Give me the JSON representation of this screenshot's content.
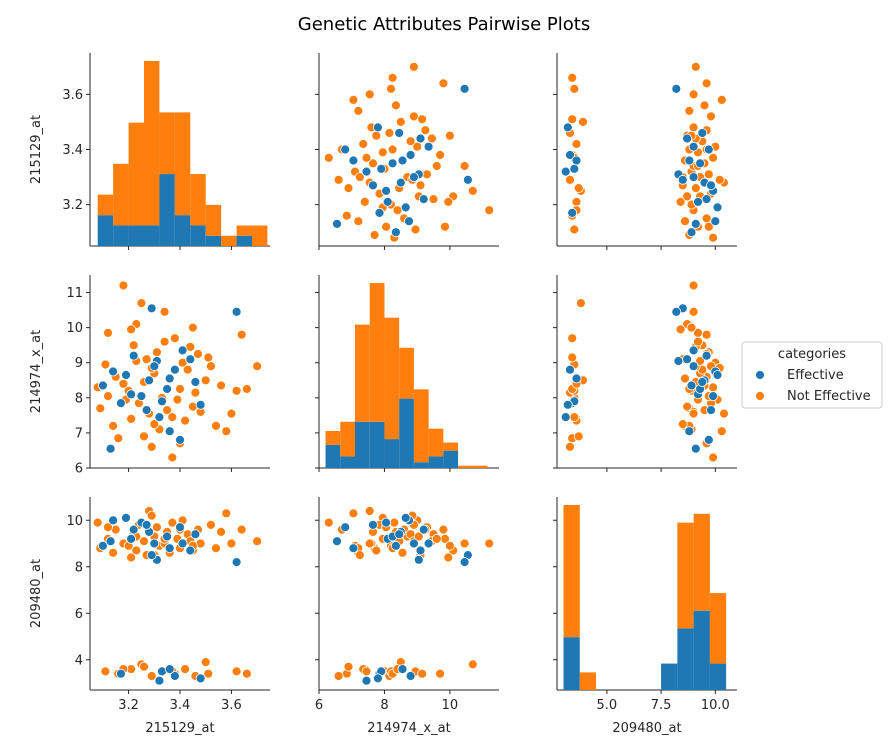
{
  "figure": {
    "title": "Genetic Attributes Pairwise Plots"
  },
  "colors": {
    "Effective": "#1f77b4",
    "Not Effective": "#ff7f0e"
  },
  "legend": {
    "title": "categories",
    "entries": [
      "Effective",
      "Not Effective"
    ],
    "placement": "right"
  },
  "chart_data": {
    "type": "scatter",
    "variables": [
      "215129_at",
      "214974_x_at",
      "209480_at"
    ],
    "axes": {
      "215129_at": {
        "range": [
          3.05,
          3.75
        ],
        "ticks": [
          3.2,
          3.4,
          3.6
        ],
        "tick_labels": [
          "3.2",
          "3.4",
          "3.6"
        ]
      },
      "214974_x_at": {
        "range": [
          6.0,
          11.5
        ],
        "ticks": [
          6,
          7,
          8,
          9,
          10,
          11
        ],
        "tick_labels": [
          "6",
          "7",
          "8",
          "9",
          "10",
          "11"
        ],
        "x_ticks": [
          6,
          8,
          10
        ],
        "x_tick_labels": [
          "6",
          "8",
          "10"
        ]
      },
      "209480_at": {
        "range": [
          2.7,
          11.0
        ],
        "ticks": [
          4,
          6,
          8,
          10
        ],
        "tick_labels": [
          "4",
          "6",
          "8",
          "10"
        ],
        "x_ticks": [
          5.0,
          7.5,
          10.0
        ],
        "x_tick_labels": [
          "5.0",
          "7.5",
          "10.0"
        ]
      }
    },
    "histograms": {
      "215129_at": {
        "bin_edges": [
          3.08,
          3.14,
          3.2,
          3.26,
          3.32,
          3.38,
          3.44,
          3.5,
          3.56,
          3.62,
          3.68,
          3.74
        ],
        "series": [
          {
            "name": "Effective",
            "counts": [
              3,
              2,
              2,
              2,
              7,
              3,
              2,
              1,
              0,
              1,
              0
            ]
          },
          {
            "name": "Not Effective",
            "counts": [
              2,
              6,
              10,
              16,
              6,
              10,
              5,
              3,
              1,
              1,
              2
            ]
          }
        ],
        "stacked": true
      },
      "214974_x_at": {
        "bin_edges": [
          6.2,
          6.65,
          7.1,
          7.55,
          8.0,
          8.45,
          8.9,
          9.35,
          9.8,
          10.25,
          10.7,
          11.15
        ],
        "series": [
          {
            "name": "Effective",
            "counts": [
              1,
              0.5,
              2,
              2,
              1.25,
              3,
              0.25,
              0.5,
              0.75,
              0,
              0
            ]
          },
          {
            "name": "Not Effective",
            "counts": [
              0.6,
              1.5,
              4.2,
              6,
              5.25,
              2.2,
              3.15,
              1.2,
              0.35,
              0.1,
              0.1
            ]
          }
        ],
        "stacked": true
      },
      "209480_at": {
        "bin_edges": [
          3.0,
          3.75,
          4.5,
          5.25,
          6.0,
          6.75,
          7.5,
          8.25,
          9.0,
          9.75,
          10.5
        ],
        "series": [
          {
            "name": "Effective",
            "counts": [
              6,
              0,
              0,
              0,
              0,
              0,
              3,
              7,
              9,
              3
            ]
          },
          {
            "name": "Not Effective",
            "counts": [
              15,
              2,
              0,
              0,
              0,
              0,
              0,
              12,
              11,
              8
            ]
          }
        ],
        "stacked": true
      }
    },
    "points": {
      "Effective": [
        [
          3.1,
          8.35,
          8.9
        ],
        [
          3.14,
          8.75,
          10.0
        ],
        [
          3.17,
          7.85,
          3.4
        ],
        [
          3.21,
          8.1,
          9.2
        ],
        [
          3.28,
          8.5,
          9.5
        ],
        [
          3.31,
          9.05,
          8.3
        ],
        [
          3.32,
          7.45,
          3.1
        ],
        [
          3.35,
          8.25,
          9.3
        ],
        [
          3.36,
          7.05,
          8.8
        ],
        [
          3.38,
          8.8,
          3.3
        ],
        [
          3.4,
          6.8,
          9.7
        ],
        [
          3.41,
          9.35,
          9.0
        ],
        [
          3.29,
          10.55,
          8.5
        ],
        [
          3.25,
          8.05,
          9.9
        ],
        [
          3.33,
          7.9,
          3.5
        ],
        [
          3.46,
          8.45,
          9.4
        ],
        [
          3.22,
          9.2,
          9.6
        ],
        [
          3.62,
          10.45,
          8.2
        ],
        [
          3.13,
          6.55,
          9.1
        ],
        [
          3.36,
          8.55,
          3.6
        ],
        [
          3.27,
          7.65,
          9.8
        ],
        [
          3.44,
          9.1,
          8.7
        ],
        [
          3.19,
          8.65,
          10.1
        ],
        [
          3.48,
          7.8,
          3.2
        ],
        [
          3.3,
          8.9,
          9.0
        ]
      ],
      "Not Effective": [
        [
          3.08,
          8.3,
          9.9
        ],
        [
          3.09,
          7.7,
          8.8
        ],
        [
          3.11,
          8.95,
          3.5
        ],
        [
          3.12,
          9.85,
          9.2
        ],
        [
          3.14,
          7.2,
          8.6
        ],
        [
          3.15,
          8.6,
          9.6
        ],
        [
          3.16,
          6.85,
          3.4
        ],
        [
          3.18,
          11.2,
          9.0
        ],
        [
          3.19,
          7.95,
          10.1
        ],
        [
          3.2,
          8.2,
          8.9
        ],
        [
          3.21,
          7.4,
          3.6
        ],
        [
          3.22,
          9.5,
          9.4
        ],
        [
          3.23,
          10.1,
          8.7
        ],
        [
          3.24,
          7.85,
          9.8
        ],
        [
          3.25,
          10.7,
          3.8
        ],
        [
          3.26,
          8.45,
          9.1
        ],
        [
          3.27,
          9.1,
          8.5
        ],
        [
          3.28,
          7.55,
          10.4
        ],
        [
          3.29,
          6.6,
          3.3
        ],
        [
          3.3,
          8.7,
          9.3
        ],
        [
          3.31,
          9.3,
          9.7
        ],
        [
          3.32,
          7.1,
          8.9
        ],
        [
          3.33,
          8.0,
          3.5
        ],
        [
          3.34,
          10.45,
          9.0
        ],
        [
          3.35,
          7.65,
          9.5
        ],
        [
          3.36,
          8.55,
          8.6
        ],
        [
          3.37,
          6.3,
          9.9
        ],
        [
          3.38,
          9.7,
          3.4
        ],
        [
          3.39,
          7.95,
          9.2
        ],
        [
          3.4,
          8.25,
          8.8
        ],
        [
          3.41,
          9.0,
          10.0
        ],
        [
          3.42,
          7.35,
          3.6
        ],
        [
          3.43,
          8.8,
          9.4
        ],
        [
          3.44,
          9.45,
          9.1
        ],
        [
          3.45,
          7.75,
          8.7
        ],
        [
          3.46,
          8.15,
          3.3
        ],
        [
          3.47,
          9.25,
          9.6
        ],
        [
          3.48,
          7.6,
          9.0
        ],
        [
          3.5,
          8.5,
          3.9
        ],
        [
          3.52,
          8.9,
          9.8
        ],
        [
          3.54,
          7.2,
          8.8
        ],
        [
          3.56,
          8.35,
          9.5
        ],
        [
          3.58,
          7.05,
          10.3
        ],
        [
          3.6,
          7.55,
          9.0
        ],
        [
          3.62,
          8.2,
          3.5
        ],
        [
          3.64,
          9.8,
          9.6
        ],
        [
          3.66,
          8.25,
          3.4
        ],
        [
          3.7,
          8.9,
          9.1
        ],
        [
          3.21,
          9.95,
          8.4
        ],
        [
          3.26,
          6.9,
          3.7
        ],
        [
          3.34,
          9.6,
          9.2
        ],
        [
          3.18,
          8.4,
          3.6
        ],
        [
          3.3,
          7.25,
          8.5
        ],
        [
          3.12,
          8.05,
          9.7
        ],
        [
          3.45,
          10.0,
          8.9
        ],
        [
          3.37,
          7.45,
          3.5
        ],
        [
          3.23,
          9.05,
          9.3
        ],
        [
          3.29,
          8.85,
          10.2
        ],
        [
          3.4,
          6.7,
          9.6
        ],
        [
          3.51,
          9.15,
          3.4
        ]
      ]
    }
  }
}
